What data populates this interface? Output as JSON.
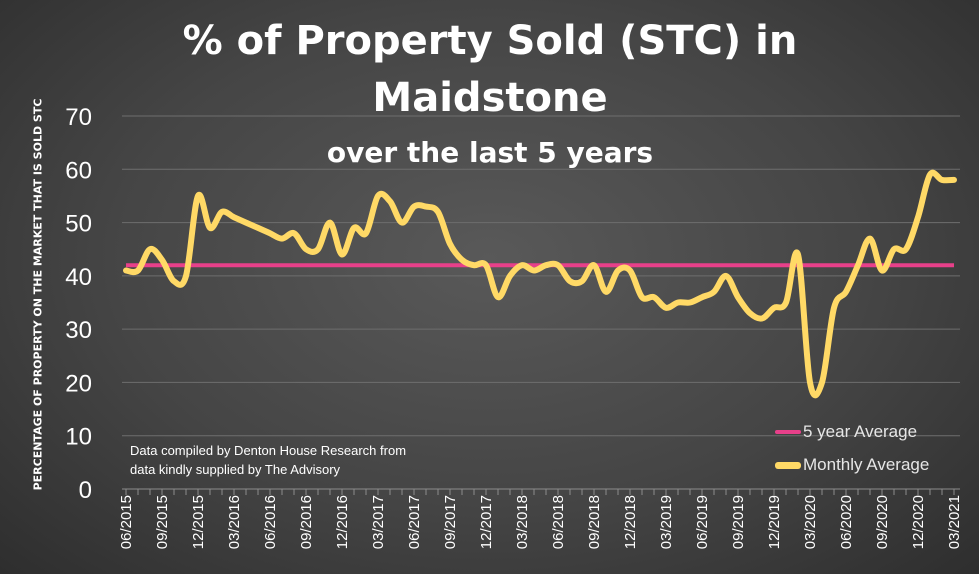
{
  "chart_data": {
    "type": "line",
    "title_line1": "% of Property Sold (STC) in",
    "title_line2": "Maidstone",
    "subtitle": "over the last 5 years",
    "ylabel": "PERCENTAGE OF PROPERTY ON THE MARKET THAT IS SOLD STC",
    "xlabel": "",
    "ylim": [
      0,
      70
    ],
    "yticks": [
      0,
      10,
      20,
      30,
      40,
      50,
      60,
      70
    ],
    "x_tick_labels": [
      "06/2015",
      "09/2015",
      "12/2015",
      "03/2016",
      "06/2016",
      "09/2016",
      "12/2016",
      "03/2017",
      "06/2017",
      "09/2017",
      "12/2017",
      "03/2018",
      "06/2018",
      "09/2018",
      "12/2018",
      "03/2019",
      "06/2019",
      "09/2019",
      "12/2019",
      "03/2020",
      "06/2020",
      "09/2020",
      "12/2020",
      "03/2021"
    ],
    "x": [
      "06/2015",
      "07/2015",
      "08/2015",
      "09/2015",
      "10/2015",
      "11/2015",
      "12/2015",
      "01/2016",
      "02/2016",
      "03/2016",
      "04/2016",
      "05/2016",
      "06/2016",
      "07/2016",
      "08/2016",
      "09/2016",
      "10/2016",
      "11/2016",
      "12/2016",
      "01/2017",
      "02/2017",
      "03/2017",
      "04/2017",
      "05/2017",
      "06/2017",
      "07/2017",
      "08/2017",
      "09/2017",
      "10/2017",
      "11/2017",
      "12/2017",
      "01/2018",
      "02/2018",
      "03/2018",
      "04/2018",
      "05/2018",
      "06/2018",
      "07/2018",
      "08/2018",
      "09/2018",
      "10/2018",
      "11/2018",
      "12/2018",
      "01/2019",
      "02/2019",
      "03/2019",
      "04/2019",
      "05/2019",
      "06/2019",
      "07/2019",
      "08/2019",
      "09/2019",
      "10/2019",
      "11/2019",
      "12/2019",
      "01/2020",
      "02/2020",
      "03/2020",
      "04/2020",
      "05/2020",
      "06/2020",
      "07/2020",
      "08/2020",
      "09/2020",
      "10/2020",
      "11/2020",
      "12/2020",
      "01/2021",
      "02/2021",
      "03/2021"
    ],
    "series": [
      {
        "name": "5 year Average",
        "color": "#e8408a",
        "values": [
          42,
          42,
          42,
          42,
          42,
          42,
          42,
          42,
          42,
          42,
          42,
          42,
          42,
          42,
          42,
          42,
          42,
          42,
          42,
          42,
          42,
          42,
          42,
          42,
          42,
          42,
          42,
          42,
          42,
          42,
          42,
          42,
          42,
          42,
          42,
          42,
          42,
          42,
          42,
          42,
          42,
          42,
          42,
          42,
          42,
          42,
          42,
          42,
          42,
          42,
          42,
          42,
          42,
          42,
          42,
          42,
          42,
          42,
          42,
          42,
          42,
          42,
          42,
          42,
          42,
          42,
          42,
          42,
          42,
          42
        ]
      },
      {
        "name": "Monthly Average",
        "color": "#ffd966",
        "values": [
          41,
          41,
          45,
          43,
          39,
          40,
          55,
          49,
          52,
          51,
          50,
          49,
          48,
          47,
          48,
          45,
          45,
          50,
          44,
          49,
          48,
          55,
          54,
          50,
          53,
          53,
          52,
          46,
          43,
          42,
          42,
          36,
          40,
          42,
          41,
          42,
          42,
          39,
          39,
          42,
          37,
          41,
          41,
          36,
          36,
          34,
          35,
          35,
          36,
          37,
          40,
          36,
          33,
          32,
          34,
          35,
          44,
          20,
          20,
          34,
          37,
          42,
          47,
          41,
          45,
          45,
          51,
          59,
          58,
          58
        ]
      }
    ],
    "legend_position": "bottom-right",
    "grid": true,
    "annotation": [
      "Data compiled by Denton House Research from",
      "data kindly supplied by The Advisory"
    ]
  }
}
